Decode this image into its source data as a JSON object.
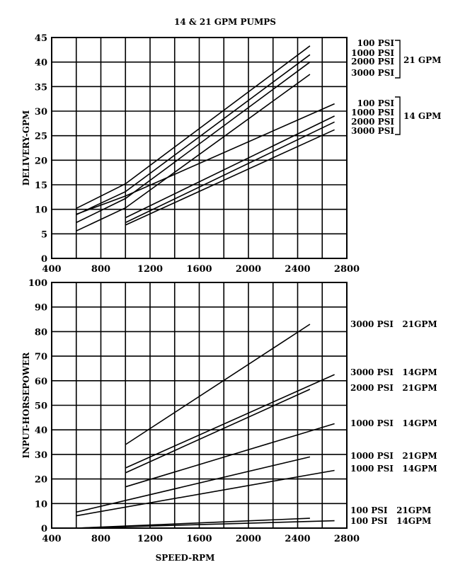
{
  "title": "14 & 21 GPM PUMPS",
  "chart_data": [
    {
      "type": "line",
      "xlabel": "",
      "ylabel": "DELIVERY-GPM",
      "xlim": [
        400,
        2800
      ],
      "ylim": [
        0,
        45
      ],
      "xticks": [
        400,
        800,
        1200,
        1600,
        2000,
        2400,
        2800
      ],
      "yticks": [
        0,
        5,
        10,
        15,
        20,
        25,
        30,
        35,
        40,
        45
      ],
      "series": [
        {
          "points": [
            [
              600,
              10.2
            ],
            [
              1000,
              15.2
            ],
            [
              2500,
              43.3
            ]
          ]
        },
        {
          "points": [
            [
              600,
              8.9
            ],
            [
              1000,
              13.6
            ],
            [
              2500,
              41.5
            ]
          ]
        },
        {
          "points": [
            [
              600,
              7.3
            ],
            [
              1000,
              12.2
            ],
            [
              2500,
              40.0
            ]
          ]
        },
        {
          "points": [
            [
              600,
              5.6
            ],
            [
              1000,
              10.3
            ],
            [
              2500,
              37.5
            ]
          ]
        },
        {
          "points": [
            [
              600,
              9.0
            ],
            [
              1000,
              12.7
            ],
            [
              2700,
              31.5
            ]
          ]
        },
        {
          "points": [
            [
              1000,
              8.3
            ],
            [
              2700,
              29.0
            ]
          ]
        },
        {
          "points": [
            [
              1000,
              7.3
            ],
            [
              2700,
              27.8
            ]
          ]
        },
        {
          "points": [
            [
              1000,
              6.8
            ],
            [
              2700,
              26.2
            ]
          ]
        }
      ],
      "groups": [
        {
          "name": "21 GPM",
          "labels": [
            "100 PSI",
            "1000 PSI",
            "2000 PSI",
            "3000 PSI"
          ]
        },
        {
          "name": "14 GPM",
          "labels": [
            "100 PSI",
            "1000 PSI",
            "2000 PSI",
            "3000 PSI"
          ]
        }
      ]
    },
    {
      "type": "line",
      "xlabel": "SPEED-RPM",
      "ylabel": "INPUT-HORSEPOWER",
      "xlim": [
        400,
        2800
      ],
      "ylim": [
        0,
        100
      ],
      "xticks": [
        400,
        800,
        1200,
        1600,
        2000,
        2400,
        2800
      ],
      "yticks": [
        0,
        10,
        20,
        30,
        40,
        50,
        60,
        70,
        80,
        90,
        100
      ],
      "series": [
        {
          "name": "3000 PSI   21GPM",
          "points": [
            [
              1000,
              34.0
            ],
            [
              2500,
              83.0
            ]
          ]
        },
        {
          "name": "3000 PSI   14GPM",
          "points": [
            [
              1000,
              24.5
            ],
            [
              2700,
              62.5
            ]
          ]
        },
        {
          "name": "2000 PSI   21GPM",
          "points": [
            [
              1000,
              22.5
            ],
            [
              2500,
              56.5
            ]
          ]
        },
        {
          "name": "1000 PSI   14GPM",
          "points": [
            [
              1000,
              16.8
            ],
            [
              2700,
              42.5
            ]
          ]
        },
        {
          "name": "1000 PSI   21GPM",
          "points": [
            [
              600,
              6.5
            ],
            [
              2500,
              29.0
            ]
          ]
        },
        {
          "name": "1000 PSI   14GPM",
          "points": [
            [
              600,
              5.0
            ],
            [
              2700,
              23.5
            ]
          ]
        },
        {
          "name": "100 PSI   21GPM",
          "points": [
            [
              600,
              0.0
            ],
            [
              2500,
              4.0
            ]
          ]
        },
        {
          "name": "100 PSI   14GPM",
          "points": [
            [
              600,
              0.0
            ],
            [
              2700,
              3.0
            ]
          ]
        }
      ]
    }
  ]
}
